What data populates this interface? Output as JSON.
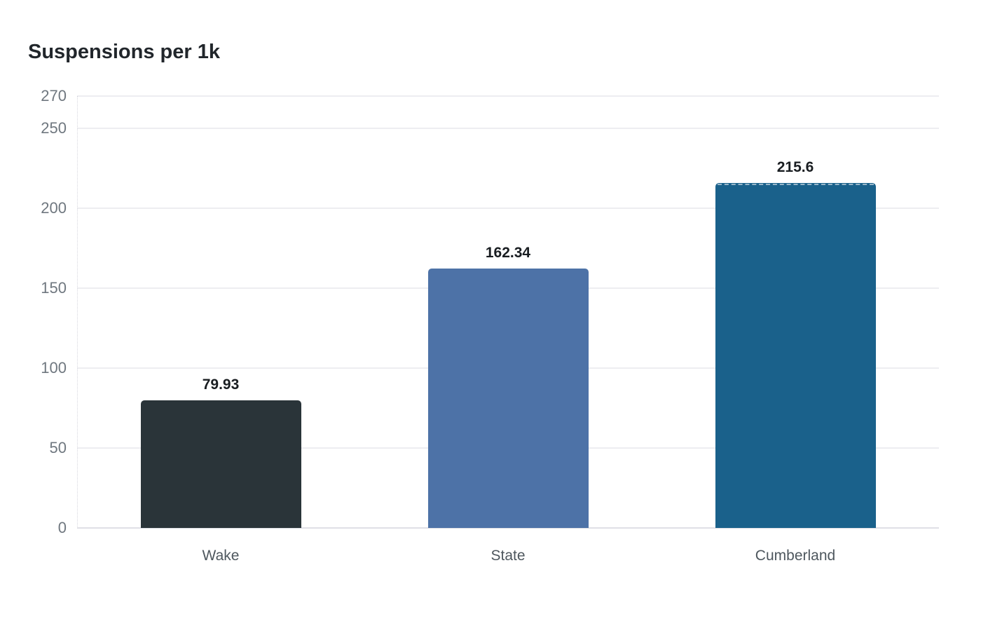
{
  "title": "Suspensions per 1k",
  "chart_data": {
    "type": "bar",
    "title": "Suspensions per 1k",
    "categories": [
      "Wake",
      "State",
      "Cumberland"
    ],
    "values": [
      79.93,
      162.34,
      215.6
    ],
    "value_labels": [
      "79.93",
      "162.34",
      "215.6"
    ],
    "bar_colors": [
      "#2a3439",
      "#4d72a7",
      "#1a618b"
    ],
    "xlabel": "",
    "ylabel": "",
    "ylim": [
      0,
      270
    ],
    "yticks": [
      0,
      50,
      100,
      150,
      200,
      250,
      270
    ],
    "grid": true,
    "legend": false,
    "highlighted_category": "Cumberland"
  },
  "colors": {
    "background": "#ffffff",
    "title": "#21262b",
    "grid": "#ededf1",
    "axis_baseline": "#e0e0e6",
    "tick_label": "#6f777f",
    "category_label": "#4e575e",
    "value_label": "#191d21",
    "highlight_dash": "rgba(255,255,255,0.55)"
  }
}
